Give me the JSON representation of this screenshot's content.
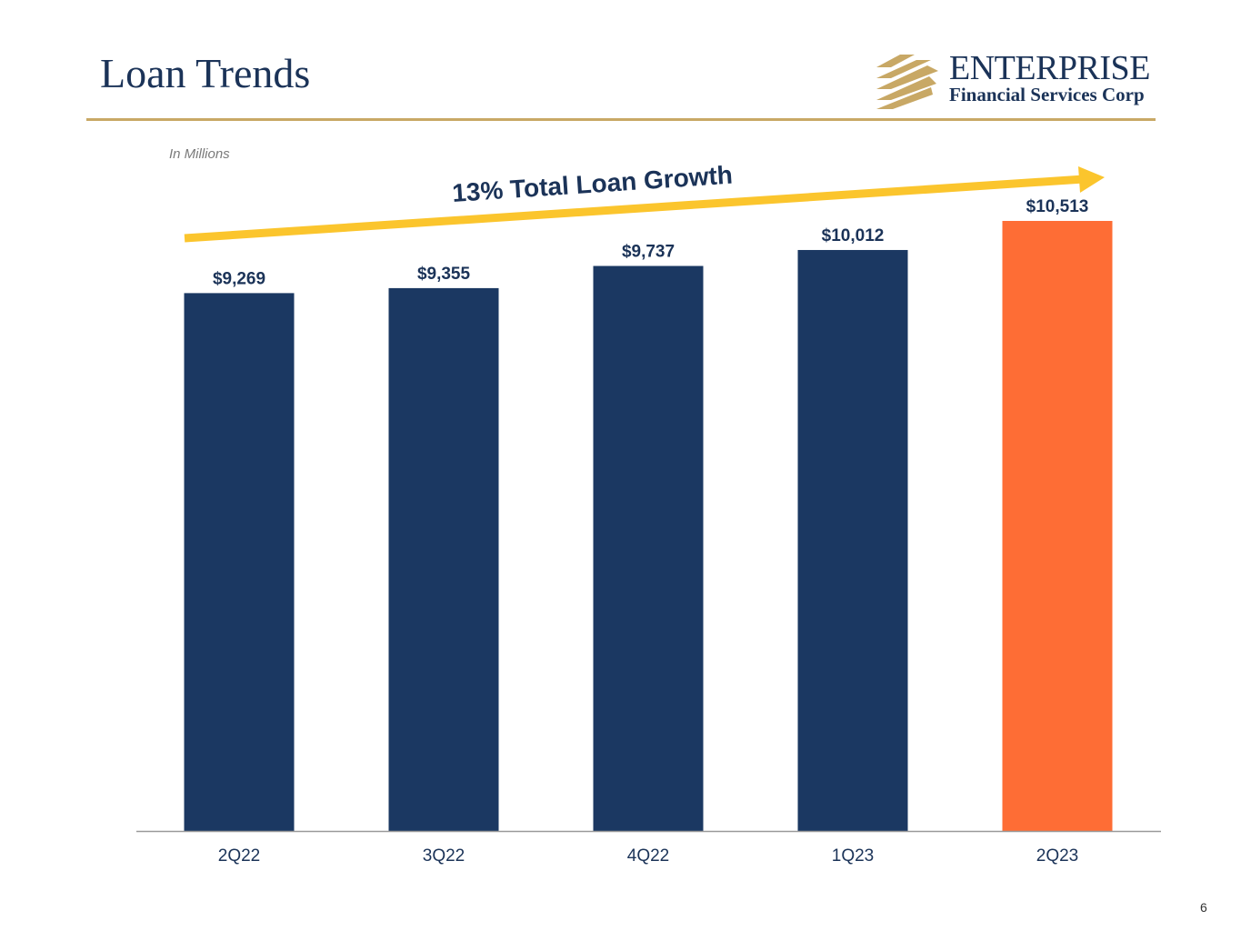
{
  "slide": {
    "title": "Loan Trends",
    "unit_note": "In Millions",
    "page_number": "6"
  },
  "logo": {
    "name": "ENTERPRISE",
    "subtitle": "Financial Services Corp"
  },
  "annotation": {
    "text": "13% Total Loan Growth",
    "arrow_color": "#fbc52d"
  },
  "chart_data": {
    "type": "bar",
    "categories": [
      "2Q22",
      "3Q22",
      "4Q22",
      "1Q23",
      "2Q23"
    ],
    "values": [
      9269,
      9355,
      9737,
      10012,
      10513
    ],
    "value_labels": [
      "$9,269",
      "$9,355",
      "$9,737",
      "$10,012",
      "$10,513"
    ],
    "ylim": [
      0,
      11500
    ],
    "colors": [
      "#1b3862",
      "#1b3862",
      "#1b3862",
      "#1b3862",
      "#fe6d35"
    ],
    "grid": false,
    "legend": "none"
  },
  "colors": {
    "navy": "#1b3862",
    "orange": "#fe6d35",
    "gold": "#c8a865",
    "label": "#1b3358"
  }
}
